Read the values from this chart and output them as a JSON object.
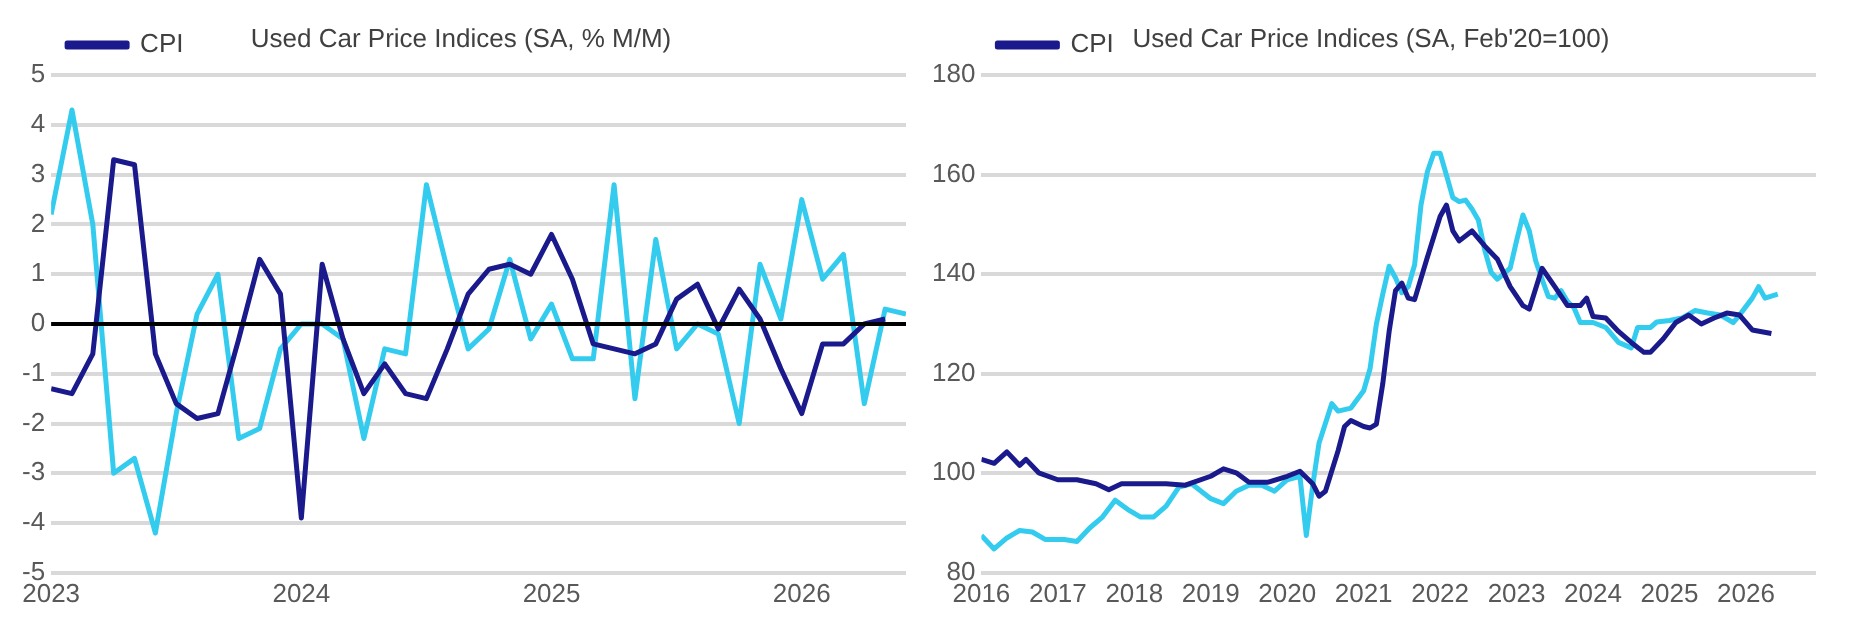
{
  "chart_data": [
    {
      "type": "line",
      "title": "Used Car Price Indices (SA, % M/M)",
      "x": [
        "2023-01",
        "2023-02",
        "2023-03",
        "2023-04",
        "2023-05",
        "2023-06",
        "2023-07",
        "2023-08",
        "2023-09",
        "2023-10",
        "2023-11",
        "2023-12",
        "2024-01",
        "2024-02",
        "2024-03",
        "2024-04",
        "2024-05",
        "2024-06",
        "2024-07",
        "2024-08",
        "2024-09",
        "2024-10",
        "2024-11",
        "2024-12",
        "2025-01",
        "2025-02",
        "2025-03",
        "2025-04",
        "2025-05",
        "2025-06",
        "2025-07",
        "2025-08",
        "2025-09",
        "2025-10",
        "2025-11",
        "2025-12",
        "2026-01",
        "2026-02",
        "2026-03",
        "2026-04",
        "2026-05",
        "2026-06"
      ],
      "xlim": [
        "2023-01",
        "2026-06"
      ],
      "xticks": [
        "2023",
        "2024",
        "2025",
        "2026"
      ],
      "ylim": [
        -5,
        5
      ],
      "yticks": [
        -5,
        -4,
        -3,
        -2,
        -1,
        0,
        1,
        2,
        3,
        4,
        5
      ],
      "grid": "y",
      "legend": "top left",
      "ref_lines": [
        {
          "axis": "y",
          "value": 0,
          "color": "#000000"
        }
      ],
      "series": [
        {
          "name": "CPI",
          "color": "#1a1a8c",
          "values": [
            -1.3,
            -1.4,
            -0.6,
            3.3,
            3.2,
            -0.6,
            -1.6,
            -1.9,
            -1.8,
            -0.3,
            1.3,
            0.6,
            -3.9,
            1.2,
            -0.3,
            -1.4,
            -0.8,
            -1.4,
            -1.5,
            -0.5,
            0.6,
            1.1,
            1.2,
            1.0,
            1.8,
            0.9,
            -0.4,
            -0.5,
            -0.6,
            -0.4,
            0.5,
            0.8,
            -0.1,
            0.7,
            0.1,
            -0.9,
            -1.8,
            -0.4,
            -0.4,
            0.0,
            0.1,
            null
          ]
        },
        {
          "color": "#33ccee",
          "values": [
            2.2,
            4.3,
            2.0,
            -3.0,
            -2.7,
            -4.2,
            -1.8,
            0.2,
            1.0,
            -2.3,
            -2.1,
            -0.5,
            0.0,
            0.0,
            -0.3,
            -2.3,
            -0.5,
            -0.6,
            2.8,
            1.1,
            -0.5,
            -0.1,
            1.3,
            -0.3,
            0.4,
            -0.7,
            -0.7,
            2.8,
            -1.5,
            1.7,
            -0.5,
            0.0,
            -0.2,
            -2.0,
            1.2,
            0.1,
            2.5,
            0.9,
            1.4,
            -1.6,
            0.3,
            0.2
          ]
        }
      ]
    },
    {
      "type": "line",
      "title": "Used Car Price Indices (SA, Feb'20=100)",
      "xlim": [
        "2016-01",
        "2026-12"
      ],
      "xticks": [
        "2016",
        "2017",
        "2018",
        "2019",
        "2020",
        "2021",
        "2022",
        "2023",
        "2024",
        "2025",
        "2026"
      ],
      "ylim": [
        80,
        180
      ],
      "yticks": [
        80,
        100,
        120,
        140,
        160,
        180
      ],
      "grid": "y",
      "legend": "top left",
      "series": [
        {
          "name": "CPI",
          "color": "#1a1a8c",
          "x": [
            "2016-01",
            "2016-03",
            "2016-05",
            "2016-07",
            "2016-08",
            "2016-10",
            "2017-01",
            "2017-04",
            "2017-07",
            "2017-09",
            "2017-11",
            "2018-01",
            "2018-06",
            "2018-09",
            "2019-01",
            "2019-03",
            "2019-05",
            "2019-07",
            "2019-10",
            "2020-01",
            "2020-03",
            "2020-05",
            "2020-06",
            "2020-07",
            "2020-09",
            "2020-10",
            "2020-11",
            "2021-01",
            "2021-02",
            "2021-03",
            "2021-04",
            "2021-05",
            "2021-06",
            "2021-07",
            "2021-08",
            "2021-09",
            "2021-11",
            "2022-01",
            "2022-02",
            "2022-03",
            "2022-04",
            "2022-06",
            "2022-08",
            "2022-10",
            "2022-12",
            "2023-02",
            "2023-03",
            "2023-05",
            "2023-07",
            "2023-09",
            "2023-11",
            "2023-12",
            "2024-01",
            "2024-03",
            "2024-05",
            "2024-07",
            "2024-09",
            "2024-10",
            "2024-12",
            "2025-02",
            "2025-04",
            "2025-06",
            "2025-08",
            "2025-10",
            "2025-12",
            "2026-02",
            "2026-05"
          ],
          "values": [
            102.8,
            102,
            104.3,
            101.6,
            102.8,
            100.1,
            98.7,
            98.7,
            97.9,
            96.7,
            97.9,
            97.9,
            97.9,
            97.6,
            99.4,
            100.9,
            100.1,
            98.2,
            98.2,
            99.4,
            100.4,
            97.9,
            95.4,
            96.4,
            104.6,
            109.4,
            110.6,
            109.4,
            109.1,
            109.9,
            118,
            128.5,
            136.7,
            138.2,
            135.2,
            134.9,
            143.4,
            151.6,
            153.9,
            148.7,
            146.7,
            148.7,
            145.7,
            143,
            137.5,
            133.7,
            133,
            141.2,
            137.5,
            133.7,
            133.7,
            135.2,
            131.5,
            131.2,
            128.5,
            126.3,
            124.3,
            124.3,
            127,
            130.3,
            131.8,
            130,
            131.2,
            132.2,
            131.8,
            128.8,
            128.1
          ]
        },
        {
          "color": "#33ccee",
          "x": [
            "2016-01",
            "2016-03",
            "2016-05",
            "2016-07",
            "2016-09",
            "2016-11",
            "2017-02",
            "2017-04",
            "2017-06",
            "2017-08",
            "2017-10",
            "2017-12",
            "2018-02",
            "2018-04",
            "2018-06",
            "2018-08",
            "2018-10",
            "2019-01",
            "2019-03",
            "2019-05",
            "2019-07",
            "2019-09",
            "2019-11",
            "2020-01",
            "2020-03",
            "2020-04",
            "2020-05",
            "2020-06",
            "2020-08",
            "2020-09",
            "2020-11",
            "2021-01",
            "2021-02",
            "2021-03",
            "2021-04",
            "2021-05",
            "2021-06",
            "2021-07",
            "2021-08",
            "2021-09",
            "2021-10",
            "2021-11",
            "2021-12",
            "2022-01",
            "2022-02",
            "2022-03",
            "2022-04",
            "2022-05",
            "2022-06",
            "2022-07",
            "2022-08",
            "2022-09",
            "2022-10",
            "2022-12",
            "2023-01",
            "2023-02",
            "2023-03",
            "2023-04",
            "2023-05",
            "2023-06",
            "2023-07",
            "2023-08",
            "2023-09",
            "2023-10",
            "2023-11",
            "2024-01",
            "2024-03",
            "2024-05",
            "2024-07",
            "2024-08",
            "2024-10",
            "2024-11",
            "2025-01",
            "2025-03",
            "2025-05",
            "2025-07",
            "2025-09",
            "2025-11",
            "2025-12",
            "2026-02",
            "2026-03",
            "2026-04",
            "2026-06"
          ],
          "values": [
            87.5,
            84.8,
            87,
            88.5,
            88.2,
            86.7,
            86.7,
            86.3,
            89,
            91.2,
            94.6,
            92.7,
            91.2,
            91.2,
            93.4,
            97.2,
            97.9,
            94.9,
            93.9,
            96.4,
            97.6,
            97.6,
            96.4,
            98.7,
            99.4,
            87.5,
            97.5,
            106.1,
            114,
            112.5,
            113.1,
            116.6,
            121,
            130,
            136,
            141.6,
            139.3,
            136.3,
            137.5,
            141.9,
            153.9,
            160.6,
            164.3,
            164.3,
            159.9,
            155.4,
            154.6,
            154.9,
            153.1,
            150.9,
            144.9,
            140.4,
            139,
            141.2,
            146.7,
            151.9,
            148.7,
            142.7,
            139,
            135.5,
            135.2,
            136.7,
            134.5,
            133.3,
            130.3,
            130.3,
            129.3,
            126.3,
            125.2,
            129.3,
            129.3,
            130.4,
            130.7,
            131.2,
            132.7,
            132.2,
            131.8,
            130.3,
            131.8,
            135.2,
            137.5,
            135.2,
            136
          ]
        }
      ]
    }
  ]
}
